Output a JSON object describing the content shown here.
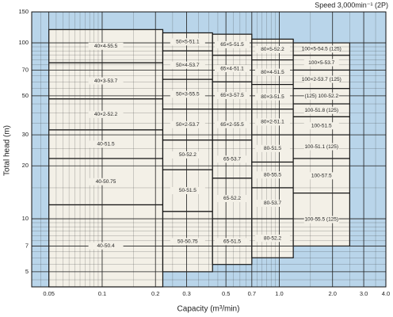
{
  "chart_data": {
    "type": "pump-selection",
    "subtitle": "Speed  3,000min⁻¹ (2P)",
    "x_label": "Capacity (m³/min)",
    "y_label": "Total head (m)",
    "log_x": true,
    "log_y": true,
    "grid": true,
    "minor_grid": true,
    "background_color": "#b9d5ea",
    "tile_color": "#f3f0e7",
    "xlim": [
      0.04,
      4.0
    ],
    "xticks": [
      0.05,
      0.1,
      0.2,
      0.3,
      0.5,
      0.7,
      {
        "value": 1,
        "label": "1.0"
      },
      {
        "value": 2,
        "label": "2.0"
      },
      {
        "value": 3,
        "label": "3.0"
      },
      {
        "value": 4,
        "label": "4.0"
      }
    ],
    "ylim": [
      4.1,
      150
    ],
    "yticks": [
      5,
      7,
      10,
      20,
      30,
      50,
      70,
      100,
      150
    ],
    "tiles": [
      {
        "label": "40×4-55.5",
        "capacity": [
          0.05,
          0.22
        ],
        "head": [
          77,
          119
        ]
      },
      {
        "label": "40×3-53.7",
        "capacity": [
          0.05,
          0.22
        ],
        "head": [
          48,
          77
        ]
      },
      {
        "label": "40×2-52.2",
        "capacity": [
          0.05,
          0.22
        ],
        "head": [
          32,
          48
        ]
      },
      {
        "label": "40-51.5",
        "capacity": [
          0.05,
          0.22
        ],
        "head": [
          22,
          32
        ]
      },
      {
        "label": "40-50.75",
        "capacity": [
          0.05,
          0.22
        ],
        "head": [
          12,
          22
        ]
      },
      {
        "label": "40-50.4",
        "capacity": [
          0.05,
          0.22
        ],
        "head": [
          4.1,
          12
        ]
      },
      {
        "label": "50×5-51.1",
        "capacity": [
          0.22,
          0.42
        ],
        "head": [
          90,
          114
        ]
      },
      {
        "label": "50×4-53.7",
        "capacity": [
          0.22,
          0.42
        ],
        "head": [
          62,
          90
        ]
      },
      {
        "label": "50×3-55.5",
        "capacity": [
          0.22,
          0.42
        ],
        "head": [
          42,
          62
        ]
      },
      {
        "label": "50×2-53.7",
        "capacity": [
          0.22,
          0.42
        ],
        "head": [
          28,
          42
        ]
      },
      {
        "label": "50-52.2",
        "capacity": [
          0.22,
          0.42
        ],
        "head": [
          19,
          28
        ]
      },
      {
        "label": "50-51.5",
        "capacity": [
          0.22,
          0.42
        ],
        "head": [
          11,
          19
        ]
      },
      {
        "label": "50-50.75",
        "capacity": [
          0.22,
          0.42
        ],
        "head": [
          5,
          11
        ]
      },
      {
        "label": "65×5-51.5",
        "capacity": [
          0.42,
          0.7
        ],
        "head": [
          85,
          112
        ]
      },
      {
        "label": "65×4-51.1",
        "capacity": [
          0.42,
          0.7
        ],
        "head": [
          60,
          85
        ]
      },
      {
        "label": "65×3-57.5",
        "capacity": [
          0.42,
          0.7
        ],
        "head": [
          42,
          60
        ]
      },
      {
        "label": "65×2-55.5",
        "capacity": [
          0.42,
          0.7
        ],
        "head": [
          28,
          42
        ]
      },
      {
        "label": "65-53.7",
        "capacity": [
          0.42,
          0.7
        ],
        "head": [
          17,
          28
        ]
      },
      {
        "label": "65-52.2",
        "capacity": [
          0.42,
          0.7
        ],
        "head": [
          10,
          17
        ]
      },
      {
        "label": "65-51.5",
        "capacity": [
          0.42,
          0.7
        ],
        "head": [
          5.5,
          10
        ]
      },
      {
        "label": "80×5-52.2",
        "capacity": [
          0.7,
          1.2
        ],
        "head": [
          80,
          105
        ]
      },
      {
        "label": "80×4-51.5",
        "capacity": [
          0.7,
          1.2
        ],
        "head": [
          58,
          80
        ]
      },
      {
        "label": "80×3-51.5",
        "capacity": [
          0.7,
          1.2
        ],
        "head": [
          42,
          58
        ]
      },
      {
        "label": "80×2-51.1",
        "capacity": [
          0.7,
          1.2
        ],
        "head": [
          30,
          42
        ]
      },
      {
        "label": "80-51.5",
        "capacity": [
          0.7,
          1.2
        ],
        "head": [
          21,
          30
        ]
      },
      {
        "label": "80-55.5",
        "capacity": [
          0.7,
          1.2
        ],
        "head": [
          15,
          21
        ]
      },
      {
        "label": "80-53.7",
        "capacity": [
          0.7,
          1.2
        ],
        "head": [
          10,
          15
        ]
      },
      {
        "label": "80-52.2",
        "capacity": [
          0.7,
          1.2
        ],
        "head": [
          6,
          10
        ]
      },
      {
        "label": "100×5-54.5 (125)",
        "capacity": [
          1.2,
          2.5
        ],
        "head": [
          85,
          100
        ]
      },
      {
        "label": "100×5-53.7",
        "capacity": [
          1.2,
          2.5
        ],
        "head": [
          70,
          85
        ]
      },
      {
        "label": "100×2-53.7 (125)",
        "capacity": [
          1.2,
          2.5
        ],
        "head": [
          55,
          70
        ]
      },
      {
        "label": "(125) 100-52.2",
        "capacity": [
          1.2,
          2.5
        ],
        "head": [
          45,
          55
        ]
      },
      {
        "label": "100-51.8 (125)",
        "capacity": [
          1.2,
          2.5
        ],
        "head": [
          38,
          45
        ]
      },
      {
        "label": "100-51.5",
        "capacity": [
          1.2,
          2.5
        ],
        "head": [
          30,
          38
        ]
      },
      {
        "label": "100-51.1 (125)",
        "capacity": [
          1.2,
          2.5
        ],
        "head": [
          22,
          30
        ]
      },
      {
        "label": "100-57.5",
        "capacity": [
          1.2,
          2.5
        ],
        "head": [
          14,
          22
        ]
      },
      {
        "label": "100-55.5 (125)",
        "capacity": [
          1.2,
          2.5
        ],
        "head": [
          7,
          14
        ]
      }
    ]
  }
}
